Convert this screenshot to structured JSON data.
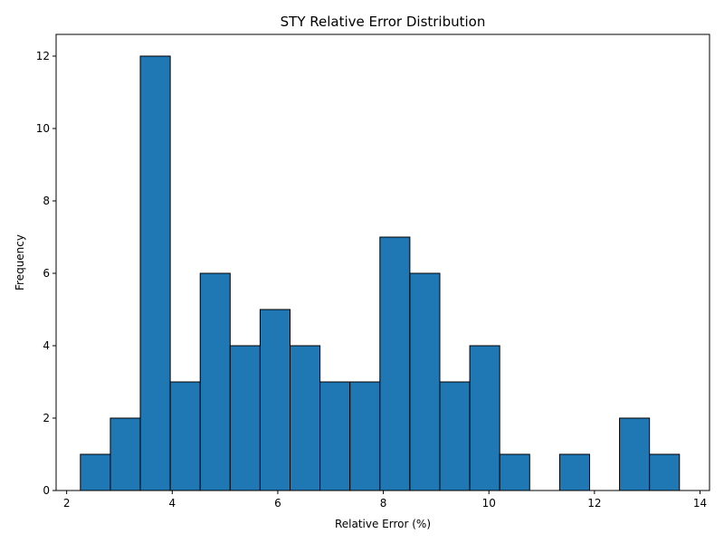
{
  "chart_data": {
    "type": "bar",
    "title": "STY Relative Error Distribution",
    "xlabel": "Relative Error (%)",
    "ylabel": "Frequency",
    "xlim": [
      1.8,
      14.18
    ],
    "ylim": [
      0,
      12.6
    ],
    "xticks": [
      2,
      4,
      6,
      8,
      10,
      12,
      14
    ],
    "yticks": [
      0,
      2,
      4,
      6,
      8,
      10,
      12
    ],
    "bin_start": 2.26,
    "bin_width": 0.5675,
    "values": [
      1,
      2,
      12,
      3,
      6,
      4,
      5,
      4,
      3,
      3,
      7,
      6,
      3,
      4,
      1,
      0,
      1,
      0,
      2,
      1
    ],
    "bar_color": "#1f77b4",
    "edge_color": "#000000",
    "grid": false,
    "legend": "none"
  }
}
